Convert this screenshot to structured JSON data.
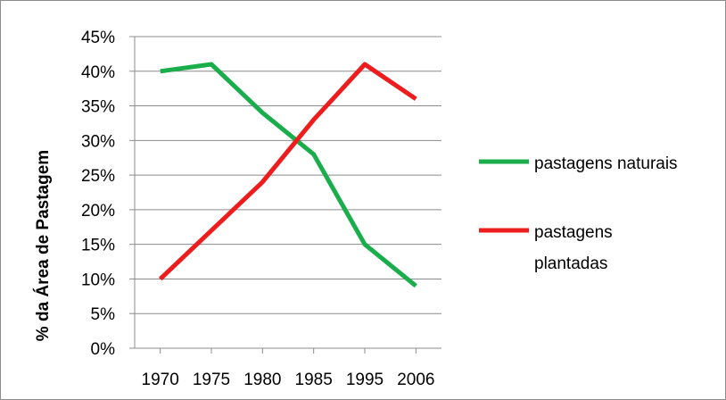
{
  "chart_data": {
    "type": "line",
    "title": "",
    "xlabel": "",
    "ylabel": "% da Área de Pastagem",
    "categories": [
      "1970",
      "1975",
      "1980",
      "1985",
      "1995",
      "2006"
    ],
    "ylim": [
      0,
      45
    ],
    "y_ticks": [
      "0%",
      "5%",
      "10%",
      "15%",
      "20%",
      "25%",
      "30%",
      "35%",
      "40%",
      "45%"
    ],
    "y_tick_values": [
      0,
      5,
      10,
      15,
      20,
      25,
      30,
      35,
      40,
      45
    ],
    "grid": true,
    "legend_position": "right",
    "series": [
      {
        "name": "pastagens naturais",
        "name_lines": [
          "pastagens naturais"
        ],
        "color": "#1aad4b",
        "values": [
          40,
          41,
          34,
          28,
          15,
          9
        ]
      },
      {
        "name": "pastagens plantadas",
        "name_lines": [
          "pastagens",
          "plantadas"
        ],
        "color": "#ee1c1c",
        "values": [
          10,
          17,
          24,
          33,
          41,
          36
        ]
      }
    ]
  }
}
